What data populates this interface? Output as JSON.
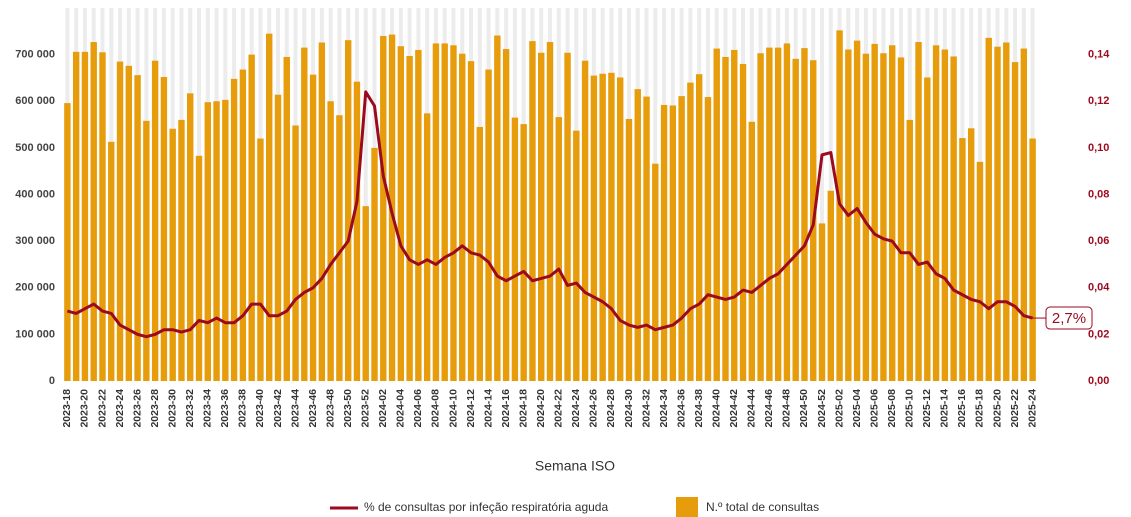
{
  "chart_data": {
    "type": "bar-line",
    "x_label": "Semana ISO",
    "categories": [
      "2023-18",
      null,
      "2023-20",
      null,
      "2023-22",
      null,
      "2023-24",
      null,
      "2023-26",
      null,
      "2023-28",
      null,
      "2023-30",
      null,
      "2023-32",
      null,
      "2023-34",
      null,
      "2023-36",
      null,
      "2023-38",
      null,
      "2023-40",
      null,
      "2023-42",
      null,
      "2023-44",
      null,
      "2023-46",
      null,
      "2023-48",
      null,
      "2023-50",
      null,
      "2023-52",
      null,
      "2024-02",
      null,
      "2024-04",
      null,
      "2024-06",
      null,
      "2024-08",
      null,
      "2024-10",
      null,
      "2024-12",
      null,
      "2024-14",
      null,
      "2024-16",
      null,
      "2024-18",
      null,
      "2024-20",
      null,
      "2024-22",
      null,
      "2024-24",
      null,
      "2024-26",
      null,
      "2024-28",
      null,
      "2024-30",
      null,
      "2024-32",
      null,
      "2024-34",
      null,
      "2024-36",
      null,
      "2024-38",
      null,
      "2024-40",
      null,
      "2024-42",
      null,
      "2024-44",
      null,
      "2024-46",
      null,
      "2024-48",
      null,
      "2024-50",
      null,
      "2024-52",
      null,
      "2025-02",
      null,
      "2025-04",
      null,
      "2025-06",
      null,
      "2025-08",
      null,
      "2025-10",
      null,
      "2025-12",
      null,
      "2025-14",
      null,
      "2025-16",
      null,
      "2025-18",
      null,
      "2025-20",
      null,
      "2025-22",
      null,
      "2025-24"
    ],
    "series": [
      {
        "name": "% de consultas por infeção respiratória aguda",
        "kind": "line",
        "axis": "y2",
        "color": "#9b0a1e",
        "values": [
          0.03,
          0.029,
          0.031,
          0.033,
          0.03,
          0.029,
          0.024,
          0.022,
          0.02,
          0.019,
          0.02,
          0.022,
          0.022,
          0.021,
          0.022,
          0.026,
          0.025,
          0.027,
          0.025,
          0.025,
          0.028,
          0.033,
          0.033,
          0.028,
          0.028,
          0.03,
          0.035,
          0.038,
          0.04,
          0.044,
          0.05,
          0.055,
          0.06,
          0.077,
          0.124,
          0.118,
          0.088,
          0.072,
          0.058,
          0.052,
          0.05,
          0.052,
          0.05,
          0.053,
          0.055,
          0.058,
          0.055,
          0.054,
          0.051,
          0.045,
          0.043,
          0.045,
          0.047,
          0.043,
          0.044,
          0.045,
          0.048,
          0.041,
          0.042,
          0.038,
          0.036,
          0.034,
          0.031,
          0.026,
          0.024,
          0.023,
          0.024,
          0.022,
          0.023,
          0.024,
          0.027,
          0.031,
          0.033,
          0.037,
          0.036,
          0.035,
          0.036,
          0.039,
          0.038,
          0.041,
          0.044,
          0.046,
          0.05,
          0.054,
          0.058,
          0.067,
          0.097,
          0.098,
          0.076,
          0.071,
          0.074,
          0.068,
          0.063,
          0.061,
          0.06,
          0.055,
          0.055,
          0.05,
          0.051,
          0.046,
          0.044,
          0.039,
          0.037,
          0.035,
          0.034,
          0.031,
          0.034,
          0.034,
          0.032,
          0.028,
          0.027
        ],
        "value_labels": [
          null,
          null,
          null,
          null,
          null,
          null,
          null,
          null,
          null,
          null,
          null,
          null,
          null,
          null,
          null,
          null,
          null,
          null,
          null,
          null,
          null,
          null,
          null,
          null,
          null,
          null,
          null,
          null,
          null,
          null,
          null,
          null,
          null,
          null,
          null,
          null,
          null,
          null,
          null,
          null,
          null,
          null,
          null,
          null,
          null,
          null,
          null,
          null,
          null,
          null,
          null,
          null,
          null,
          null,
          null,
          null,
          null,
          null,
          null,
          null,
          null,
          null,
          null,
          null,
          null,
          null,
          null,
          null,
          null,
          null,
          null,
          null,
          null,
          null,
          null,
          null,
          null,
          null,
          null,
          null,
          null,
          null,
          null,
          null,
          null,
          null,
          null,
          null,
          null,
          null,
          null,
          null,
          null,
          null,
          null,
          null,
          null,
          null,
          null,
          null,
          null,
          null,
          null,
          null,
          null,
          null,
          null,
          null,
          null,
          null,
          "2,7%"
        ]
      },
      {
        "name": "N.º total de consultas",
        "kind": "bar",
        "color": "#e69c0b",
        "values": [
          596000,
          706000,
          706000,
          727000,
          705000,
          513000,
          685000,
          676000,
          656000,
          558000,
          687000,
          652000,
          541000,
          560000,
          617000,
          483000,
          598000,
          600000,
          603000,
          648000,
          668000,
          700000,
          520000,
          745000,
          614000,
          695000,
          548000,
          715000,
          657000,
          726000,
          600000,
          570000,
          731000,
          642000,
          375000,
          500000,
          740000,
          743000,
          718000,
          697000,
          710000,
          574000,
          724000,
          724000,
          720000,
          702000,
          686000,
          545000,
          668000,
          741000,
          712000,
          565000,
          551000,
          729000,
          704000,
          727000,
          566000,
          704000,
          537000,
          687000,
          655000,
          659000,
          661000,
          651000,
          562000,
          626000,
          610000,
          466000,
          592000,
          591000,
          611000,
          640000,
          658000,
          609000,
          713000,
          695000,
          710000,
          680000,
          556000,
          703000,
          715000,
          715000,
          724000,
          691000,
          714000,
          688000,
          338000,
          408000,
          752000,
          711000,
          730000,
          702000,
          723000,
          703000,
          720000,
          694000,
          560000,
          727000,
          651000,
          720000,
          711000,
          696000,
          521000,
          542000,
          470000,
          736000,
          717000,
          726000,
          684000,
          713000,
          520000
        ]
      }
    ],
    "ylim": [
      0,
      800000
    ],
    "yticks": [
      0,
      {
        "value": 100000,
        "label": "100 000"
      },
      {
        "value": 200000,
        "label": "200 000"
      },
      {
        "value": 300000,
        "label": "300 000"
      },
      {
        "value": 400000,
        "label": "400 000"
      },
      {
        "value": 500000,
        "label": "500 000"
      },
      {
        "value": 600000,
        "label": "600 000"
      },
      {
        "value": 700000,
        "label": "700 000"
      }
    ],
    "y2lim": [
      0,
      0.16
    ],
    "y2ticks": [
      {
        "value": 0,
        "label": "0,00"
      },
      {
        "value": 0.02,
        "label": "0,02"
      },
      {
        "value": 0.04,
        "label": "0,04"
      },
      {
        "value": 0.06,
        "label": "0,06"
      },
      {
        "value": 0.08,
        "label": "0,08"
      },
      {
        "value": 0.1,
        "label": "0,10"
      },
      {
        "value": 0.12,
        "label": "0,12"
      },
      {
        "value": 0.14,
        "label": "0,14"
      }
    ],
    "y2_color": "#9b0a1e",
    "legend": "bottom"
  }
}
